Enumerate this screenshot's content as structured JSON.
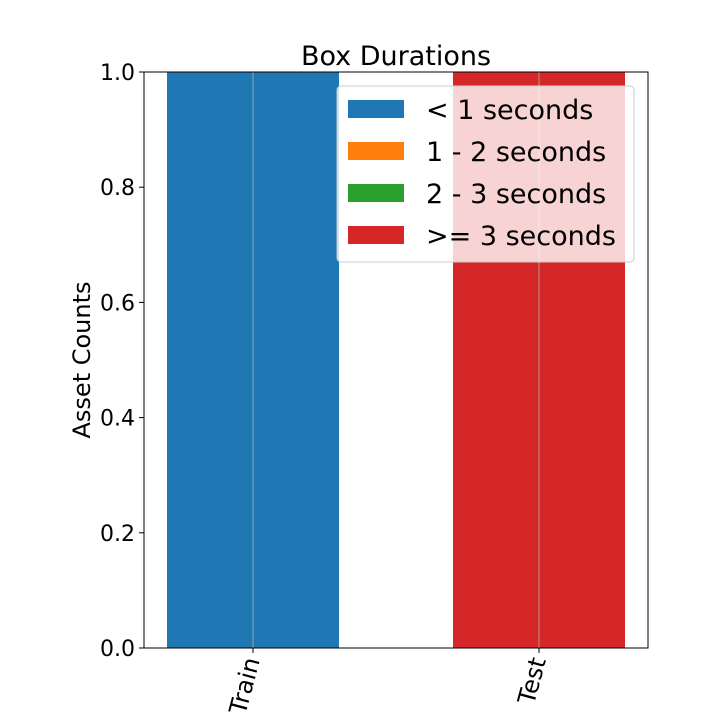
{
  "chart_data": {
    "type": "bar",
    "stacked": true,
    "title": "Box Durations",
    "xlabel": "",
    "ylabel": "Asset Counts",
    "categories": [
      "Train",
      "Test"
    ],
    "ylim": [
      0,
      1.0
    ],
    "yticks": [
      "0.0",
      "0.2",
      "0.4",
      "0.6",
      "0.8",
      "1.0"
    ],
    "grid": "vertical",
    "legend_position": "top-right",
    "series": [
      {
        "name": "< 1 seconds",
        "color": "#1f77b4",
        "values": [
          1.0,
          0.0
        ]
      },
      {
        "name": "1 - 2 seconds",
        "color": "#ff7f0e",
        "values": [
          0.0,
          0.0
        ]
      },
      {
        "name": "2 - 3 seconds",
        "color": "#2ca02c",
        "values": [
          0.0,
          0.0
        ]
      },
      {
        "name": ">= 3 seconds",
        "color": "#d62728",
        "values": [
          0.0,
          1.0
        ]
      }
    ]
  }
}
